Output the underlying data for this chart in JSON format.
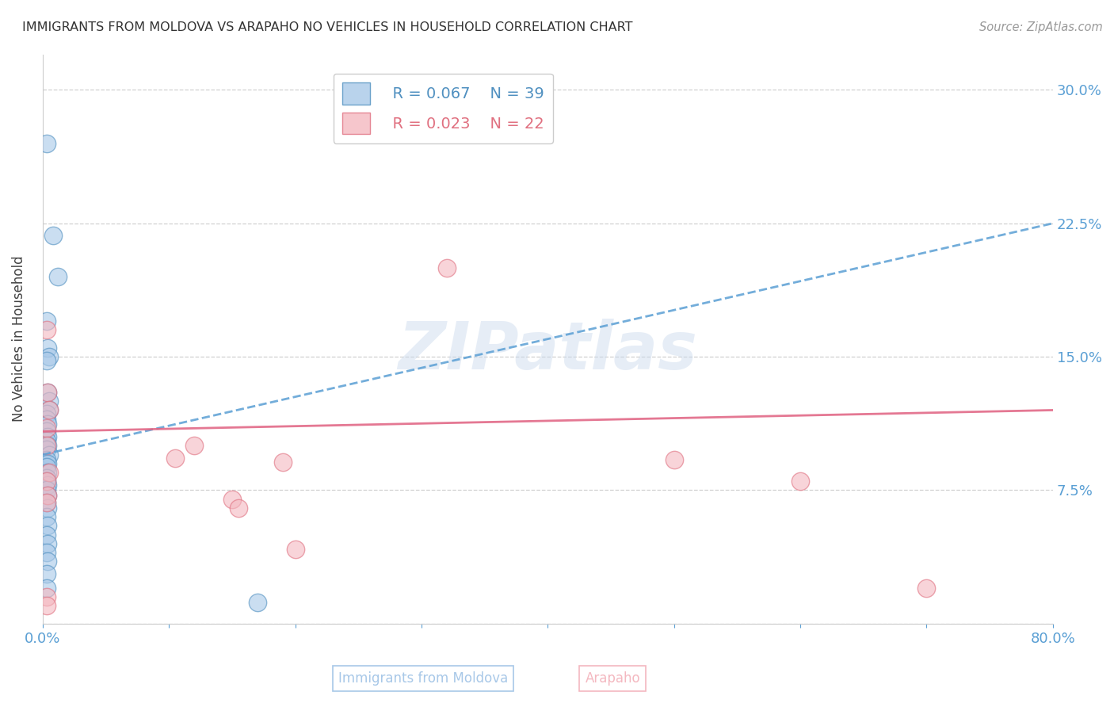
{
  "title": "IMMIGRANTS FROM MOLDOVA VS ARAPAHO NO VEHICLES IN HOUSEHOLD CORRELATION CHART",
  "source_text": "Source: ZipAtlas.com",
  "xlabel_blue": "Immigrants from Moldova",
  "xlabel_pink": "Arapaho",
  "ylabel": "No Vehicles in Household",
  "xmin": 0.0,
  "xmax": 0.8,
  "ymin": 0.0,
  "ymax": 0.32,
  "xticks": [
    0.0,
    0.1,
    0.2,
    0.3,
    0.4,
    0.5,
    0.6,
    0.7,
    0.8
  ],
  "xtick_labels": [
    "0.0%",
    "",
    "",
    "",
    "",
    "",
    "",
    "",
    "80.0%"
  ],
  "yticks": [
    0.0,
    0.075,
    0.15,
    0.225,
    0.3
  ],
  "ytick_labels_right": [
    "",
    "7.5%",
    "15.0%",
    "22.5%",
    "30.0%"
  ],
  "grid_color": "#d0d0d0",
  "legend_R_blue": "R = 0.067",
  "legend_N_blue": "N = 39",
  "legend_R_pink": "R = 0.023",
  "legend_N_pink": "N = 22",
  "blue_color": "#a8c8e8",
  "pink_color": "#f4b8c0",
  "blue_edge_color": "#5090c0",
  "pink_edge_color": "#e07080",
  "blue_line_color": "#5a9fd4",
  "pink_line_color": "#e06080",
  "blue_scatter": [
    [
      0.003,
      0.27
    ],
    [
      0.008,
      0.218
    ],
    [
      0.012,
      0.195
    ],
    [
      0.003,
      0.17
    ],
    [
      0.004,
      0.155
    ],
    [
      0.005,
      0.15
    ],
    [
      0.003,
      0.148
    ],
    [
      0.004,
      0.13
    ],
    [
      0.005,
      0.125
    ],
    [
      0.005,
      0.12
    ],
    [
      0.003,
      0.118
    ],
    [
      0.003,
      0.115
    ],
    [
      0.004,
      0.112
    ],
    [
      0.003,
      0.108
    ],
    [
      0.004,
      0.105
    ],
    [
      0.003,
      0.103
    ],
    [
      0.004,
      0.1
    ],
    [
      0.003,
      0.098
    ],
    [
      0.005,
      0.095
    ],
    [
      0.003,
      0.092
    ],
    [
      0.004,
      0.09
    ],
    [
      0.003,
      0.088
    ],
    [
      0.004,
      0.085
    ],
    [
      0.003,
      0.082
    ],
    [
      0.003,
      0.08
    ],
    [
      0.004,
      0.078
    ],
    [
      0.003,
      0.075
    ],
    [
      0.004,
      0.072
    ],
    [
      0.003,
      0.068
    ],
    [
      0.004,
      0.065
    ],
    [
      0.003,
      0.06
    ],
    [
      0.004,
      0.055
    ],
    [
      0.003,
      0.05
    ],
    [
      0.004,
      0.045
    ],
    [
      0.003,
      0.04
    ],
    [
      0.004,
      0.035
    ],
    [
      0.003,
      0.028
    ],
    [
      0.003,
      0.02
    ],
    [
      0.17,
      0.012
    ]
  ],
  "pink_scatter": [
    [
      0.31,
      0.298
    ],
    [
      0.32,
      0.2
    ],
    [
      0.003,
      0.165
    ],
    [
      0.004,
      0.13
    ],
    [
      0.005,
      0.12
    ],
    [
      0.003,
      0.11
    ],
    [
      0.003,
      0.1
    ],
    [
      0.12,
      0.1
    ],
    [
      0.105,
      0.093
    ],
    [
      0.19,
      0.091
    ],
    [
      0.005,
      0.085
    ],
    [
      0.003,
      0.08
    ],
    [
      0.004,
      0.072
    ],
    [
      0.15,
      0.07
    ],
    [
      0.003,
      0.068
    ],
    [
      0.155,
      0.065
    ],
    [
      0.5,
      0.092
    ],
    [
      0.6,
      0.08
    ],
    [
      0.7,
      0.02
    ],
    [
      0.003,
      0.015
    ],
    [
      0.003,
      0.01
    ],
    [
      0.2,
      0.042
    ]
  ],
  "background_color": "#ffffff",
  "watermark_text": "ZIPatlas",
  "watermark_color": "#c8d8ec",
  "blue_reg_line": [
    0.0,
    0.8,
    0.095,
    0.225
  ],
  "pink_reg_line": [
    0.0,
    0.8,
    0.108,
    0.12
  ]
}
